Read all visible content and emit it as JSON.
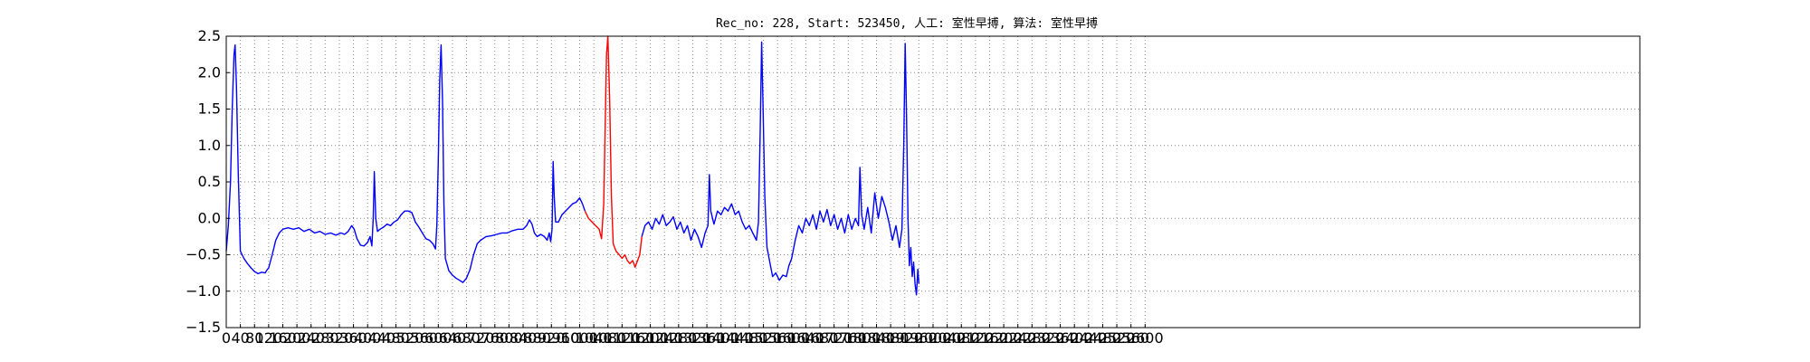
{
  "title": "Rec_no: 228, Start: 523450, 人工: 室性早搏, 算法: 室性早搏",
  "colors": {
    "normal": "#0000ff",
    "highlight": "#ff0000",
    "grid": "#888888",
    "axis": "#000000"
  },
  "chart_data": {
    "type": "line",
    "title": "Rec_no: 228, Start: 523450, 人工: 室性早搏, 算法: 室性早搏",
    "xlabel": "",
    "ylabel": "",
    "xlim": [
      0,
      4000
    ],
    "ylim": [
      -1.5,
      2.5
    ],
    "grid": true,
    "yticks": [
      -1.5,
      -1.0,
      -0.5,
      0.0,
      0.5,
      1.0,
      1.5,
      2.0,
      2.5
    ],
    "ytick_labels": [
      "−1.5",
      "−1.0",
      "−0.5",
      "0.0",
      "0.5",
      "1.0",
      "1.5",
      "2.0",
      "2.5"
    ],
    "xticks": [
      0,
      40,
      80,
      120,
      160,
      200,
      240,
      280,
      320,
      360,
      400,
      440,
      480,
      520,
      560,
      600,
      640,
      680,
      720,
      760,
      800,
      840,
      880,
      920,
      960,
      1000,
      1040,
      1080,
      1120,
      1160,
      1200,
      1240,
      1280,
      1320,
      1360,
      1400,
      1440,
      1480,
      1520,
      1560,
      1600,
      1640,
      1680,
      1720,
      1760,
      1800,
      1840,
      1880,
      1920,
      1960,
      2000,
      2040,
      2080,
      2120,
      2160,
      2200,
      2240,
      2280,
      2320,
      2360,
      2400,
      2440,
      2480,
      2520,
      2560,
      2600
    ],
    "xtick_labels": [
      "0",
      "40",
      "80",
      "120",
      "160",
      "200",
      "240",
      "280",
      "320",
      "360",
      "400",
      "440",
      "480",
      "520",
      "560",
      "600",
      "640",
      "680",
      "720",
      "760",
      "800",
      "840",
      "880",
      "920",
      "960",
      "1000",
      "1040",
      "1080",
      "1120",
      "1160",
      "1200",
      "1240",
      "1280",
      "1320",
      "1360",
      "1400",
      "1440",
      "1480",
      "1520",
      "1560",
      "1600",
      "1640",
      "1680",
      "1720",
      "1760",
      "1800",
      "1840",
      "1880",
      "1920",
      "1960",
      "2000",
      "2040",
      "2080",
      "2120",
      "2160",
      "2200",
      "2240",
      "2280",
      "2320",
      "2360",
      "2400",
      "2440",
      "2480",
      "2520",
      "2560",
      "2600"
    ],
    "series": [
      {
        "color": "#0000ff",
        "points": [
          [
            0,
            -0.45
          ],
          [
            6,
            -0.1
          ],
          [
            12,
            0.5
          ],
          [
            17,
            1.5
          ],
          [
            22,
            2.25
          ],
          [
            25,
            2.38
          ],
          [
            29,
            1.8
          ],
          [
            34,
            0.6
          ],
          [
            40,
            -0.45
          ],
          [
            50,
            -0.55
          ],
          [
            60,
            -0.62
          ],
          [
            70,
            -0.68
          ],
          [
            80,
            -0.73
          ],
          [
            90,
            -0.76
          ],
          [
            100,
            -0.74
          ],
          [
            110,
            -0.75
          ],
          [
            115,
            -0.71
          ],
          [
            120,
            -0.68
          ],
          [
            130,
            -0.5
          ],
          [
            140,
            -0.3
          ],
          [
            150,
            -0.2
          ],
          [
            160,
            -0.15
          ],
          [
            175,
            -0.13
          ],
          [
            190,
            -0.15
          ],
          [
            205,
            -0.13
          ],
          [
            220,
            -0.18
          ],
          [
            235,
            -0.15
          ],
          [
            250,
            -0.2
          ],
          [
            265,
            -0.18
          ],
          [
            280,
            -0.22
          ],
          [
            295,
            -0.2
          ],
          [
            310,
            -0.23
          ],
          [
            325,
            -0.2
          ],
          [
            335,
            -0.22
          ],
          [
            345,
            -0.18
          ],
          [
            355,
            -0.1
          ],
          [
            362,
            -0.15
          ],
          [
            370,
            -0.28
          ],
          [
            380,
            -0.37
          ],
          [
            390,
            -0.38
          ],
          [
            400,
            -0.33
          ],
          [
            407,
            -0.25
          ],
          [
            412,
            -0.38
          ],
          [
            416,
            0.0
          ],
          [
            419,
            0.64
          ],
          [
            423,
            0.0
          ],
          [
            428,
            -0.18
          ],
          [
            435,
            -0.15
          ],
          [
            445,
            -0.12
          ],
          [
            455,
            -0.08
          ],
          [
            465,
            -0.1
          ],
          [
            475,
            -0.05
          ],
          [
            485,
            -0.02
          ],
          [
            495,
            0.05
          ],
          [
            505,
            0.1
          ],
          [
            515,
            0.1
          ],
          [
            525,
            0.08
          ],
          [
            535,
            -0.05
          ],
          [
            545,
            -0.12
          ],
          [
            555,
            -0.2
          ],
          [
            565,
            -0.28
          ],
          [
            575,
            -0.3
          ],
          [
            585,
            -0.35
          ],
          [
            592,
            -0.42
          ],
          [
            596,
            -0.1
          ],
          [
            600,
            0.8
          ],
          [
            604,
            1.9
          ],
          [
            608,
            2.38
          ],
          [
            612,
            1.6
          ],
          [
            616,
            0.2
          ],
          [
            620,
            -0.55
          ],
          [
            630,
            -0.72
          ],
          [
            640,
            -0.78
          ],
          [
            650,
            -0.82
          ],
          [
            660,
            -0.85
          ],
          [
            670,
            -0.88
          ],
          [
            680,
            -0.82
          ],
          [
            690,
            -0.7
          ],
          [
            700,
            -0.5
          ],
          [
            710,
            -0.35
          ],
          [
            720,
            -0.3
          ],
          [
            735,
            -0.25
          ],
          [
            750,
            -0.24
          ],
          [
            765,
            -0.22
          ],
          [
            780,
            -0.2
          ],
          [
            795,
            -0.2
          ],
          [
            810,
            -0.17
          ],
          [
            825,
            -0.15
          ],
          [
            840,
            -0.15
          ],
          [
            850,
            -0.1
          ],
          [
            858,
            -0.02
          ],
          [
            865,
            -0.08
          ],
          [
            872,
            -0.2
          ],
          [
            880,
            -0.25
          ],
          [
            890,
            -0.22
          ],
          [
            900,
            -0.25
          ],
          [
            908,
            -0.3
          ],
          [
            914,
            -0.2
          ],
          [
            918,
            -0.32
          ],
          [
            922,
            -0.15
          ],
          [
            925,
            0.78
          ],
          [
            928,
            0.3
          ],
          [
            932,
            -0.05
          ],
          [
            940,
            -0.05
          ],
          [
            950,
            0.05
          ],
          [
            960,
            0.1
          ],
          [
            970,
            0.15
          ],
          [
            980,
            0.2
          ],
          [
            990,
            0.22
          ],
          [
            1000,
            0.28
          ],
          [
            1008,
            0.2
          ],
          [
            1015,
            0.1
          ]
        ]
      },
      {
        "color": "#ff0000",
        "points": [
          [
            1015,
            0.1
          ],
          [
            1025,
            0.0
          ],
          [
            1035,
            -0.05
          ],
          [
            1045,
            -0.1
          ],
          [
            1055,
            -0.15
          ],
          [
            1062,
            -0.28
          ],
          [
            1068,
            0.2
          ],
          [
            1072,
            1.2
          ],
          [
            1076,
            2.25
          ],
          [
            1080,
            2.5
          ],
          [
            1085,
            1.6
          ],
          [
            1090,
            0.3
          ],
          [
            1095,
            -0.35
          ],
          [
            1103,
            -0.45
          ],
          [
            1112,
            -0.5
          ],
          [
            1120,
            -0.55
          ],
          [
            1128,
            -0.5
          ],
          [
            1135,
            -0.58
          ],
          [
            1142,
            -0.62
          ],
          [
            1150,
            -0.58
          ],
          [
            1157,
            -0.67
          ],
          [
            1164,
            -0.58
          ],
          [
            1170,
            -0.5
          ],
          [
            1176,
            -0.25
          ]
        ]
      },
      {
        "color": "#0000ff",
        "points": [
          [
            1176,
            -0.25
          ],
          [
            1185,
            -0.1
          ],
          [
            1195,
            -0.05
          ],
          [
            1205,
            -0.15
          ],
          [
            1215,
            0.0
          ],
          [
            1225,
            -0.08
          ],
          [
            1235,
            0.05
          ],
          [
            1245,
            -0.1
          ],
          [
            1255,
            -0.05
          ],
          [
            1265,
            0.02
          ],
          [
            1275,
            -0.15
          ],
          [
            1285,
            -0.05
          ],
          [
            1295,
            -0.2
          ],
          [
            1305,
            -0.1
          ],
          [
            1315,
            -0.3
          ],
          [
            1325,
            -0.15
          ],
          [
            1335,
            -0.25
          ],
          [
            1345,
            -0.4
          ],
          [
            1355,
            -0.2
          ],
          [
            1363,
            -0.1
          ],
          [
            1367,
            0.6
          ],
          [
            1371,
            0.1
          ],
          [
            1380,
            -0.08
          ],
          [
            1390,
            0.1
          ],
          [
            1400,
            0.05
          ],
          [
            1410,
            0.15
          ],
          [
            1420,
            0.1
          ],
          [
            1430,
            0.2
          ],
          [
            1440,
            0.05
          ],
          [
            1450,
            0.1
          ],
          [
            1460,
            -0.05
          ],
          [
            1470,
            -0.15
          ],
          [
            1480,
            -0.1
          ],
          [
            1490,
            -0.2
          ],
          [
            1500,
            -0.3
          ],
          [
            1506,
            -0.05
          ],
          [
            1511,
            1.2
          ],
          [
            1515,
            2.42
          ],
          [
            1519,
            1.5
          ],
          [
            1524,
            0.3
          ],
          [
            1530,
            -0.4
          ],
          [
            1538,
            -0.6
          ],
          [
            1546,
            -0.8
          ],
          [
            1555,
            -0.75
          ],
          [
            1565,
            -0.85
          ],
          [
            1575,
            -0.78
          ],
          [
            1585,
            -0.8
          ],
          [
            1592,
            -0.65
          ],
          [
            1600,
            -0.55
          ],
          [
            1610,
            -0.3
          ],
          [
            1620,
            -0.1
          ],
          [
            1630,
            -0.2
          ],
          [
            1640,
            0.0
          ],
          [
            1650,
            -0.1
          ],
          [
            1660,
            0.05
          ],
          [
            1670,
            -0.15
          ],
          [
            1680,
            0.1
          ],
          [
            1690,
            -0.05
          ],
          [
            1700,
            0.12
          ],
          [
            1710,
            -0.1
          ],
          [
            1720,
            0.05
          ],
          [
            1730,
            -0.15
          ],
          [
            1740,
            0.0
          ],
          [
            1750,
            -0.2
          ],
          [
            1760,
            0.05
          ],
          [
            1770,
            -0.15
          ],
          [
            1780,
            0.0
          ],
          [
            1789,
            -0.1
          ],
          [
            1793,
            0.7
          ],
          [
            1798,
            0.05
          ],
          [
            1805,
            -0.15
          ],
          [
            1815,
            0.15
          ],
          [
            1825,
            -0.2
          ],
          [
            1835,
            0.35
          ],
          [
            1845,
            0.0
          ],
          [
            1855,
            0.3
          ],
          [
            1865,
            0.15
          ],
          [
            1875,
            -0.05
          ],
          [
            1885,
            -0.3
          ],
          [
            1895,
            -0.1
          ],
          [
            1905,
            -0.4
          ],
          [
            1912,
            -0.15
          ],
          [
            1917,
            1.0
          ],
          [
            1921,
            2.4
          ],
          [
            1925,
            1.4
          ],
          [
            1929,
            0.0
          ],
          [
            1933,
            -0.65
          ],
          [
            1937,
            -0.4
          ],
          [
            1941,
            -0.8
          ],
          [
            1945,
            -0.6
          ],
          [
            1949,
            -0.9
          ],
          [
            1953,
            -1.05
          ],
          [
            1957,
            -0.7
          ],
          [
            1960,
            -0.9
          ]
        ]
      }
    ]
  }
}
